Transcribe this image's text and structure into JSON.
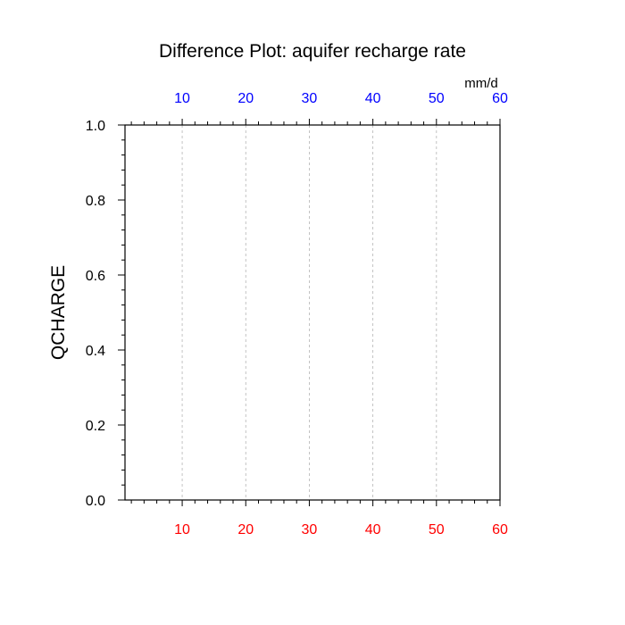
{
  "chart_data": {
    "type": "line",
    "title": "Difference Plot: aquifer recharge rate",
    "ylabel": "QCHARGE",
    "top_axis_unit": "mm/d",
    "xlim": [
      1,
      60
    ],
    "ylim": [
      0,
      1
    ],
    "x_ticks": [
      10,
      20,
      30,
      40,
      50,
      60
    ],
    "x_tick_labels": [
      "10",
      "20",
      "30",
      "40",
      "50",
      "60"
    ],
    "y_ticks": [
      0,
      0.2,
      0.4,
      0.6,
      0.8,
      1.0
    ],
    "y_tick_labels": [
      "0.0",
      "0.2",
      "0.4",
      "0.6",
      "0.8",
      "1.0"
    ],
    "grid": "vertical-dashed",
    "series": [],
    "colors": {
      "bottom_tick_labels": "#ff0000",
      "top_tick_labels": "#0000ff",
      "axis": "#000000",
      "grid": "#b4b4b4"
    }
  }
}
